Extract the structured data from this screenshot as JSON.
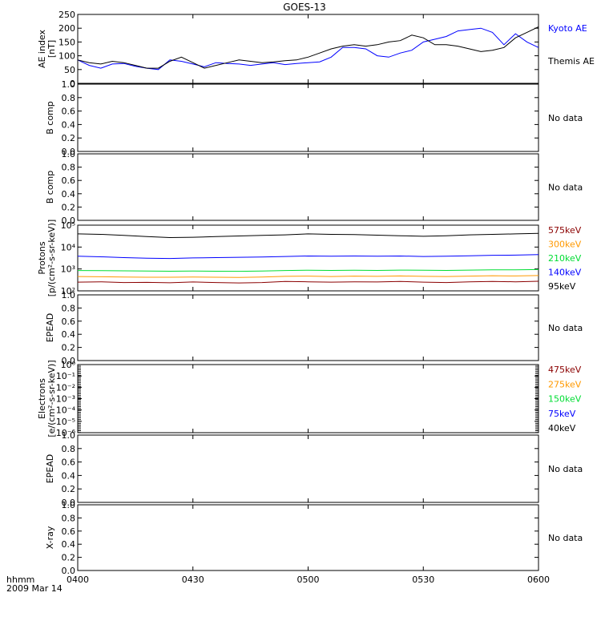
{
  "title": "GOES-13",
  "colors": {
    "black": "#000000",
    "blue": "#0000ff",
    "green": "#00dd33",
    "orange": "#ff9900",
    "red": "#8b0000"
  },
  "x_axis": {
    "ticks": [
      "0400",
      "0430",
      "0500",
      "0530",
      "0600"
    ],
    "tick_minutes": [
      240,
      270,
      300,
      330,
      360
    ],
    "range": [
      240,
      360
    ],
    "label": "hhmm",
    "date": "2009 Mar 14"
  },
  "panels": [
    {
      "id": "ae",
      "ylabel": "AE index",
      "ylabel2": "[nT]",
      "legend": [
        {
          "text": "Kyoto AE",
          "color": "blue"
        },
        {
          "text": "Themis AE",
          "color": "black"
        }
      ],
      "yticks": [
        "250",
        "200",
        "150",
        "100",
        "50",
        "0"
      ]
    },
    {
      "id": "b1",
      "ylabel": "B comp",
      "ylabel2": "",
      "note": "No data",
      "yticks": [
        "1.0",
        "0.8",
        "0.6",
        "0.4",
        "0.2",
        "0.0"
      ]
    },
    {
      "id": "b2",
      "ylabel": "B comp",
      "ylabel2": "",
      "note": "No data",
      "yticks": [
        "1.0",
        "0.8",
        "0.6",
        "0.4",
        "0.2",
        "0.0"
      ]
    },
    {
      "id": "protons",
      "ylabel": "Protons",
      "ylabel2": "[p/(cm²-s-sr-keV)]",
      "yticks": [
        "10⁵",
        "10⁴",
        "10³",
        "10²"
      ],
      "legend": [
        {
          "text": "575keV",
          "color": "red"
        },
        {
          "text": "300keV",
          "color": "orange"
        },
        {
          "text": "210keV",
          "color": "green"
        },
        {
          "text": "140keV",
          "color": "blue"
        },
        {
          "text": "95keV",
          "color": "black"
        }
      ]
    },
    {
      "id": "epead1",
      "ylabel": "EPEAD",
      "ylabel2": "",
      "note": "No data",
      "yticks": [
        "1.0",
        "0.8",
        "0.6",
        "0.4",
        "0.2",
        "0.0"
      ]
    },
    {
      "id": "electrons",
      "ylabel": "Electrons",
      "ylabel2": "[e/(cm²-s-sr-keV)]",
      "yticks": [
        "10⁰",
        "10⁻¹",
        "10⁻²",
        "10⁻³",
        "10⁻⁴",
        "10⁻⁵",
        "10⁻⁶"
      ],
      "legend": [
        {
          "text": "475keV",
          "color": "red"
        },
        {
          "text": "275keV",
          "color": "orange"
        },
        {
          "text": "150keV",
          "color": "green"
        },
        {
          "text": "75keV",
          "color": "blue"
        },
        {
          "text": "40keV",
          "color": "black"
        }
      ]
    },
    {
      "id": "epead2",
      "ylabel": "EPEAD",
      "ylabel2": "",
      "note": "No data",
      "yticks": [
        "1.0",
        "0.8",
        "0.6",
        "0.4",
        "0.2",
        "0.0"
      ]
    },
    {
      "id": "xray",
      "ylabel": "X-ray",
      "ylabel2": "",
      "note": "No data",
      "yticks": [
        "1.0",
        "0.8",
        "0.6",
        "0.4",
        "0.2",
        "0.0"
      ]
    }
  ],
  "chart_data": [
    {
      "type": "line",
      "panel": "ae",
      "ylim": [
        0,
        250
      ],
      "x": [
        240,
        243,
        246,
        249,
        252,
        255,
        258,
        261,
        264,
        267,
        270,
        273,
        276,
        279,
        282,
        285,
        288,
        291,
        294,
        297,
        300,
        303,
        306,
        309,
        312,
        315,
        318,
        321,
        324,
        327,
        330,
        333,
        336,
        339,
        342,
        345,
        348,
        351,
        354,
        357,
        360
      ],
      "series": [
        {
          "name": "Kyoto AE",
          "color": "blue",
          "values": [
            85,
            65,
            55,
            70,
            72,
            62,
            55,
            50,
            85,
            80,
            70,
            60,
            75,
            72,
            70,
            65,
            70,
            75,
            68,
            72,
            75,
            78,
            95,
            130,
            130,
            125,
            100,
            95,
            110,
            120,
            150,
            160,
            170,
            190,
            195,
            200,
            185,
            140,
            180,
            150,
            130
          ]
        },
        {
          "name": "Themis AE",
          "color": "black",
          "values": [
            85,
            75,
            70,
            80,
            75,
            65,
            55,
            55,
            80,
            95,
            75,
            55,
            65,
            75,
            85,
            80,
            75,
            78,
            82,
            85,
            95,
            110,
            125,
            135,
            140,
            135,
            140,
            150,
            155,
            175,
            165,
            140,
            140,
            135,
            125,
            115,
            120,
            130,
            165,
            185,
            205
          ]
        }
      ]
    },
    {
      "type": "line",
      "panel": "protons",
      "yscale": "log",
      "ylim": [
        100,
        100000
      ],
      "x": [
        240,
        246,
        252,
        258,
        264,
        270,
        276,
        282,
        288,
        294,
        300,
        306,
        312,
        318,
        324,
        330,
        336,
        342,
        348,
        354,
        360
      ],
      "series": [
        {
          "name": "575keV",
          "color": "red",
          "values": [
            250,
            260,
            240,
            245,
            235,
            255,
            240,
            230,
            240,
            270,
            260,
            250,
            260,
            255,
            270,
            250,
            240,
            260,
            270,
            260,
            275
          ]
        },
        {
          "name": "300keV",
          "color": "orange",
          "values": [
            450,
            440,
            430,
            420,
            420,
            430,
            420,
            410,
            430,
            460,
            470,
            450,
            470,
            460,
            480,
            460,
            450,
            470,
            490,
            480,
            500
          ]
        },
        {
          "name": "210keV",
          "color": "green",
          "values": [
            850,
            840,
            820,
            800,
            790,
            800,
            790,
            780,
            800,
            850,
            880,
            860,
            870,
            860,
            890,
            870,
            860,
            890,
            920,
            910,
            940
          ]
        },
        {
          "name": "140keV",
          "color": "blue",
          "values": [
            3800,
            3600,
            3300,
            3100,
            3000,
            3200,
            3300,
            3400,
            3500,
            3700,
            3900,
            3800,
            3900,
            3800,
            3900,
            3700,
            3800,
            4000,
            4200,
            4300,
            4500
          ]
        },
        {
          "name": "95keV",
          "color": "black",
          "values": [
            40000,
            38000,
            34000,
            30000,
            27000,
            28000,
            30000,
            32000,
            34000,
            36000,
            40000,
            38000,
            37000,
            35000,
            33000,
            31000,
            33000,
            36000,
            38000,
            40000,
            42000
          ]
        }
      ]
    }
  ]
}
